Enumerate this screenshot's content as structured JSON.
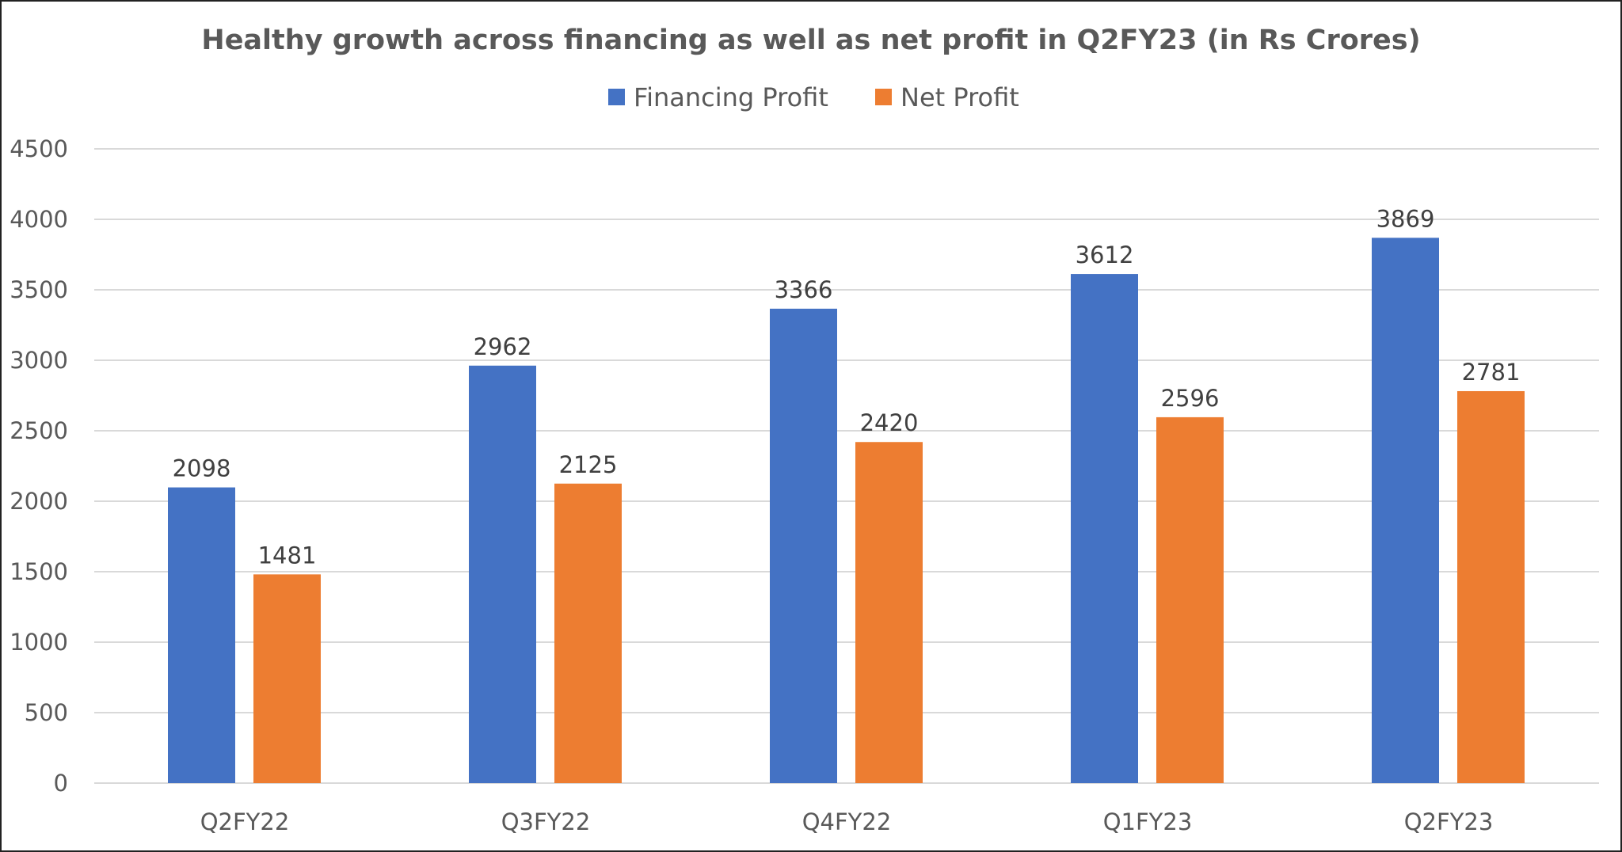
{
  "chart_data": {
    "type": "bar",
    "title": "Healthy growth across financing as well as net profit in Q2FY23 (in Rs Crores)",
    "categories": [
      "Q2FY22",
      "Q3FY22",
      "Q4FY22",
      "Q1FY23",
      "Q2FY23"
    ],
    "series": [
      {
        "name": "Financing Profit",
        "color": "#4472C4",
        "values": [
          2098,
          2962,
          3366,
          3612,
          3869
        ]
      },
      {
        "name": "Net Profit",
        "color": "#ED7D31",
        "values": [
          1481,
          2125,
          2420,
          2596,
          2781
        ]
      }
    ],
    "ylim": [
      0,
      4500
    ],
    "yticks": [
      0,
      500,
      1000,
      1500,
      2000,
      2500,
      3000,
      3500,
      4000,
      4500
    ],
    "grid": true,
    "legend": "top",
    "xlabel": "",
    "ylabel": ""
  }
}
